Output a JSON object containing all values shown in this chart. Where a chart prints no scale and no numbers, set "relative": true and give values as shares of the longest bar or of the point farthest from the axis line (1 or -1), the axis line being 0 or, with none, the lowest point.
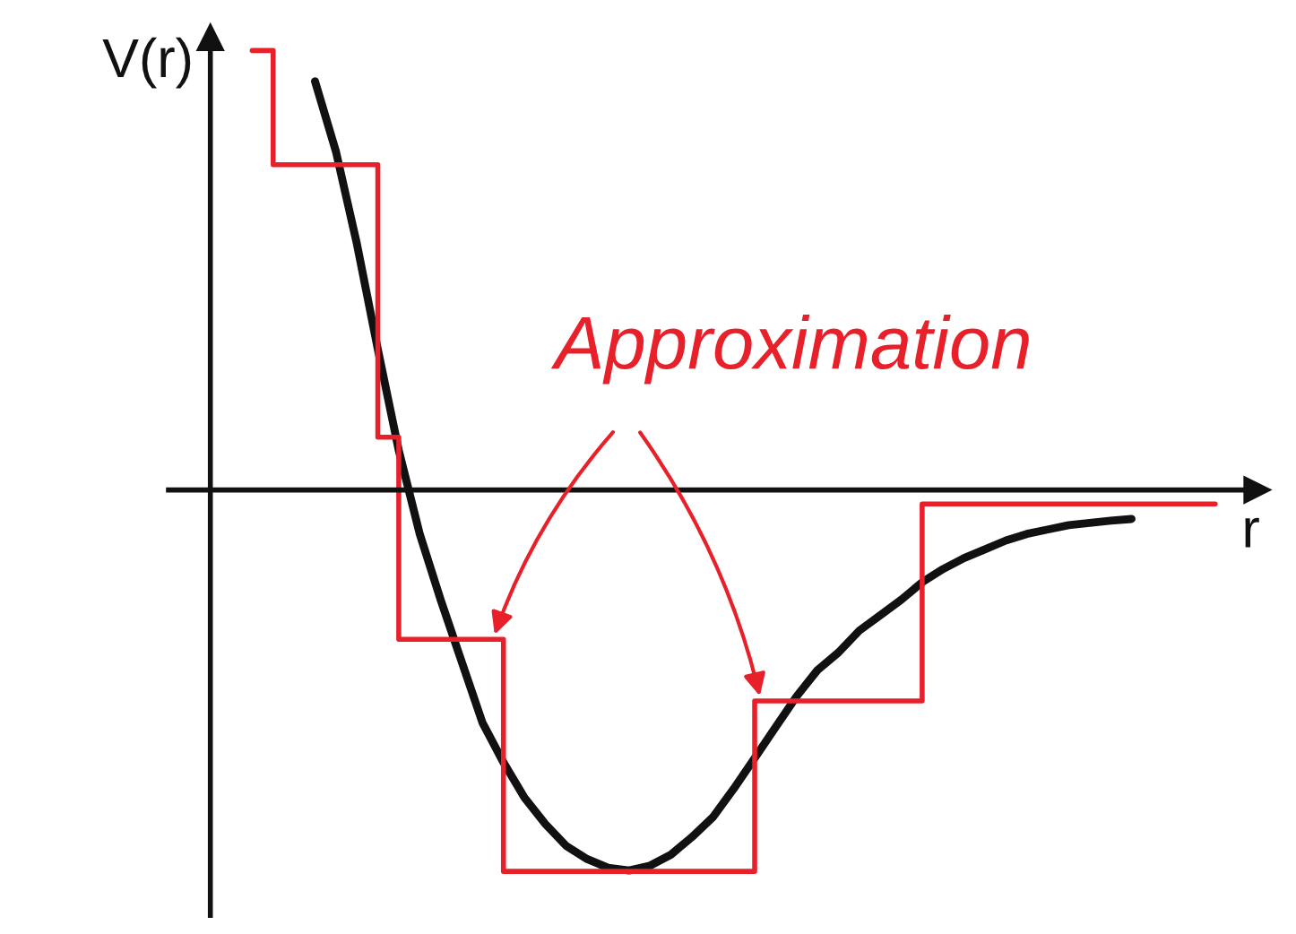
{
  "chart_data": {
    "type": "line",
    "relative": true,
    "xlabel": "r",
    "ylabel": "V(r)",
    "categories": [
      null,
      null,
      null,
      null,
      null,
      null,
      null,
      null,
      null,
      null,
      null,
      null,
      null,
      null,
      null,
      null,
      null,
      null,
      null,
      null,
      null,
      null,
      null,
      null,
      null,
      null,
      null,
      null,
      null,
      null,
      null,
      null,
      null,
      null,
      null,
      null,
      null,
      null,
      null,
      null,
      null,
      null,
      null,
      null,
      null,
      null,
      null
    ],
    "annotations": [
      "Approximation"
    ],
    "series": [
      {
        "color": "#111111",
        "values": [
          null,
          null,
          null,
          0.93,
          0.77,
          0.56,
          0.32,
          0.09,
          -0.1,
          -0.25,
          -0.39,
          -0.53,
          -0.62,
          -0.7,
          -0.76,
          -0.81,
          -0.84,
          -0.86,
          -0.866,
          -0.855,
          -0.83,
          -0.79,
          -0.745,
          -0.68,
          -0.61,
          -0.54,
          -0.47,
          -0.41,
          -0.37,
          -0.32,
          -0.285,
          -0.25,
          -0.21,
          -0.18,
          -0.155,
          -0.135,
          -0.115,
          -0.1,
          -0.09,
          -0.08,
          -0.075,
          -0.07,
          -0.066,
          null,
          null,
          null,
          null
        ]
      },
      {
        "type": "step",
        "color": "#e8202a",
        "values": [
          1.0,
          0.74,
          0.74,
          0.74,
          0.74,
          0.74,
          0.12,
          -0.34,
          -0.34,
          -0.34,
          -0.34,
          -0.34,
          -0.868,
          -0.868,
          -0.868,
          -0.868,
          -0.868,
          -0.868,
          -0.868,
          -0.868,
          -0.868,
          -0.868,
          -0.868,
          -0.868,
          -0.48,
          -0.48,
          -0.48,
          -0.48,
          -0.48,
          -0.48,
          -0.48,
          -0.48,
          -0.032,
          -0.032,
          -0.032,
          -0.032,
          -0.032,
          -0.032,
          -0.032,
          -0.032,
          -0.032,
          -0.032,
          -0.032,
          -0.032,
          -0.032,
          -0.032,
          -0.032
        ]
      }
    ]
  }
}
